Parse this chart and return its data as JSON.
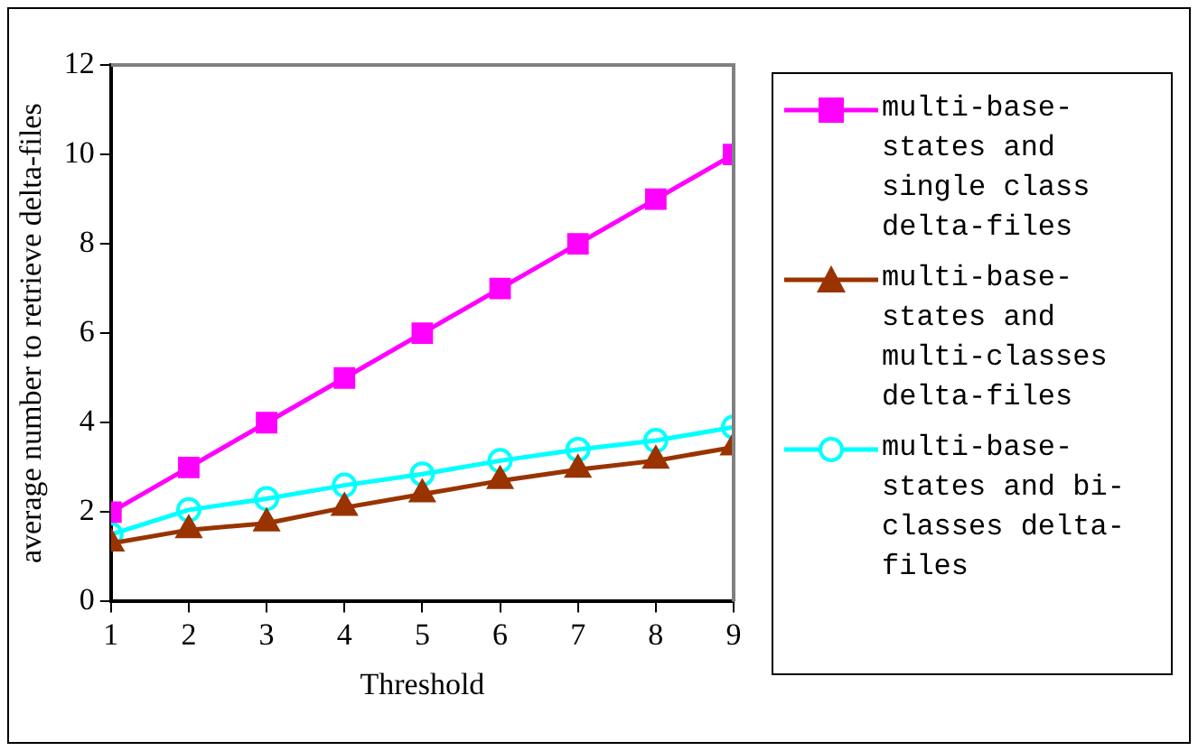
{
  "chart_data": {
    "type": "line",
    "xlabel": "Threshold",
    "ylabel": "average number to retrieve delta-files",
    "x": [
      1,
      2,
      3,
      4,
      5,
      6,
      7,
      8,
      9
    ],
    "xlim": [
      1,
      9
    ],
    "xticks": [
      1,
      2,
      3,
      4,
      5,
      6,
      7,
      8,
      9
    ],
    "ylim": [
      0,
      12
    ],
    "yticks": [
      0,
      2,
      4,
      6,
      8,
      10,
      12
    ],
    "grid": false,
    "legend": "right",
    "line_style": "solid",
    "series": [
      {
        "name": "multi-base-states and single class delta-files",
        "color": "#ff00ff",
        "marker": "square",
        "values": [
          2,
          3,
          4,
          5,
          6,
          7,
          8,
          9,
          10
        ]
      },
      {
        "name": "multi-base-states and multi-classes delta-files",
        "color": "#993300",
        "marker": "triangle",
        "values": [
          1.3,
          1.6,
          1.75,
          2.1,
          2.4,
          2.7,
          2.95,
          3.15,
          3.45
        ]
      },
      {
        "name": "multi-base-states and bi-classes delta-files",
        "color": "#00ffff",
        "marker": "circle",
        "values": [
          1.5,
          2.05,
          2.3,
          2.6,
          2.85,
          3.15,
          3.4,
          3.6,
          3.9
        ]
      }
    ]
  }
}
